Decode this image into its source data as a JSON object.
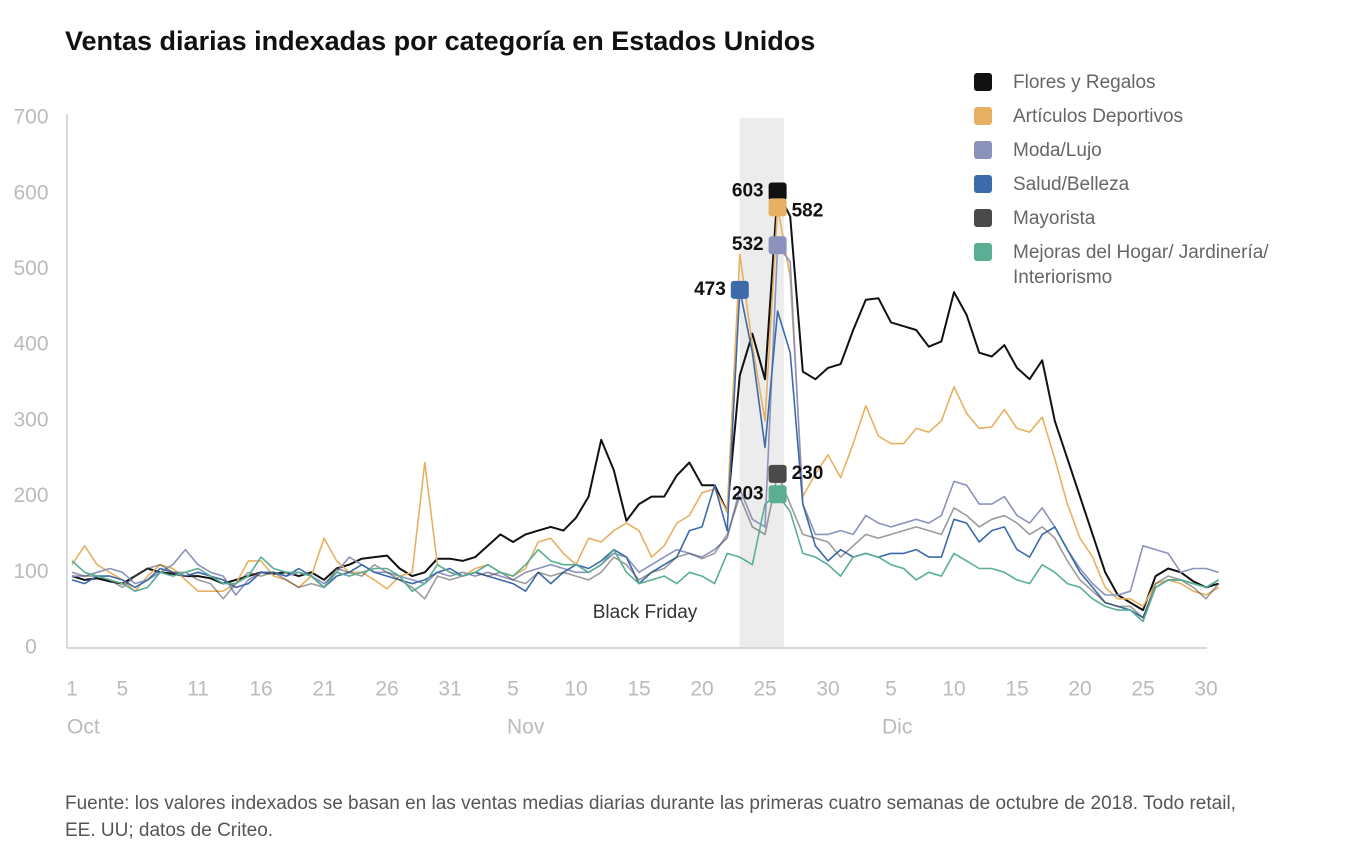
{
  "chart_data": {
    "type": "line",
    "title": "Ventas diarias indexadas por categoría en Estados Unidos",
    "footnote": "Fuente: los valores indexados se basan en las ventas medias diarias durante las primeras cuatro semanas de octubre de 2018. Todo retail, EE. UU; datos de Criteo.",
    "categories": [
      "1",
      null,
      null,
      null,
      "5",
      null,
      null,
      null,
      null,
      null,
      "11",
      null,
      null,
      null,
      null,
      "16",
      null,
      null,
      null,
      null,
      "21",
      null,
      null,
      null,
      null,
      "26",
      null,
      null,
      null,
      null,
      "31",
      null,
      null,
      null,
      null,
      "5",
      null,
      null,
      null,
      null,
      "10",
      null,
      null,
      null,
      null,
      "15",
      null,
      null,
      null,
      null,
      "20",
      null,
      null,
      null,
      null,
      "25",
      null,
      null,
      null,
      null,
      "30",
      null,
      null,
      null,
      null,
      "5",
      null,
      null,
      null,
      null,
      "10",
      null,
      null,
      null,
      null,
      "15",
      null,
      null,
      null,
      null,
      "20",
      null,
      null,
      null,
      null,
      "25",
      null,
      null,
      null,
      null,
      "30",
      null
    ],
    "months": [
      "Oct",
      "Nov",
      "Dic"
    ],
    "highlight": {
      "label": "Black Friday",
      "start": 53,
      "end": 56.5
    },
    "ylim": [
      0,
      700
    ],
    "yticks": [
      0,
      100,
      200,
      300,
      400,
      500,
      600,
      700
    ],
    "grid": false,
    "legend": "top-right",
    "series": [
      {
        "name": "Flores y Regalos",
        "color": "#111111",
        "values": [
          95,
          90,
          92,
          88,
          85,
          95,
          105,
          100,
          98,
          95,
          95,
          92,
          85,
          90,
          95,
          100,
          98,
          100,
          95,
          100,
          90,
          105,
          110,
          118,
          120,
          122,
          105,
          95,
          100,
          118,
          118,
          115,
          120,
          135,
          150,
          140,
          150,
          155,
          160,
          155,
          172,
          200,
          275,
          235,
          168,
          190,
          200,
          200,
          228,
          245,
          215,
          215,
          180,
          360,
          415,
          355,
          603,
          570,
          365,
          355,
          370,
          375,
          420,
          460,
          462,
          430,
          425,
          420,
          398,
          405,
          470,
          440,
          390,
          385,
          400,
          370,
          355,
          380,
          300,
          250,
          200,
          150,
          100,
          70,
          60,
          50,
          95,
          105,
          100,
          88,
          80,
          85
        ]
      },
      {
        "name": "Artículos Deportivos",
        "color": "#e8b062",
        "values": [
          110,
          135,
          110,
          100,
          90,
          75,
          95,
          110,
          105,
          90,
          75,
          75,
          75,
          85,
          115,
          115,
          95,
          90,
          80,
          95,
          145,
          115,
          100,
          100,
          90,
          78,
          95,
          100,
          245,
          110,
          100,
          95,
          105,
          110,
          100,
          95,
          105,
          140,
          145,
          125,
          110,
          145,
          140,
          155,
          165,
          155,
          120,
          135,
          165,
          175,
          205,
          210,
          180,
          520,
          400,
          300,
          582,
          490,
          200,
          230,
          255,
          225,
          270,
          320,
          280,
          270,
          270,
          290,
          285,
          300,
          345,
          310,
          290,
          292,
          315,
          290,
          285,
          305,
          250,
          190,
          145,
          120,
          80,
          65,
          65,
          55,
          85,
          90,
          85,
          75,
          70,
          80
        ]
      },
      {
        "name": "Moda/Lujo",
        "color": "#8b93bd",
        "values": [
          95,
          95,
          100,
          105,
          100,
          85,
          90,
          100,
          110,
          130,
          110,
          100,
          95,
          70,
          90,
          100,
          100,
          95,
          100,
          95,
          85,
          100,
          120,
          110,
          100,
          100,
          95,
          90,
          85,
          100,
          95,
          100,
          95,
          100,
          95,
          90,
          100,
          105,
          110,
          105,
          100,
          100,
          110,
          125,
          120,
          100,
          110,
          120,
          130,
          125,
          120,
          130,
          145,
          210,
          170,
          160,
          532,
          510,
          190,
          150,
          150,
          155,
          150,
          175,
          165,
          160,
          165,
          170,
          165,
          175,
          220,
          215,
          190,
          190,
          200,
          175,
          165,
          185,
          160,
          130,
          105,
          85,
          70,
          70,
          75,
          135,
          130,
          125,
          100,
          105,
          105,
          100
        ]
      },
      {
        "name": "Salud/Belleza",
        "color": "#3d6aab",
        "values": [
          90,
          85,
          95,
          95,
          90,
          80,
          90,
          105,
          100,
          95,
          100,
          95,
          90,
          80,
          85,
          100,
          100,
          95,
          105,
          95,
          80,
          95,
          100,
          110,
          100,
          95,
          90,
          85,
          90,
          100,
          105,
          95,
          100,
          95,
          90,
          85,
          75,
          100,
          85,
          100,
          110,
          105,
          115,
          130,
          120,
          85,
          100,
          110,
          120,
          155,
          160,
          215,
          155,
          473,
          390,
          265,
          445,
          390,
          190,
          135,
          115,
          130,
          120,
          125,
          120,
          125,
          125,
          130,
          120,
          120,
          170,
          165,
          140,
          155,
          160,
          130,
          120,
          150,
          160,
          130,
          100,
          80,
          60,
          55,
          50,
          40,
          80,
          90,
          90,
          85,
          80,
          90
        ]
      },
      {
        "name": "Mayorista",
        "color": "#4a4a4a",
        "values": [
          100,
          95,
          95,
          90,
          80,
          95,
          105,
          110,
          100,
          100,
          90,
          85,
          65,
          85,
          100,
          95,
          100,
          90,
          80,
          85,
          80,
          105,
          100,
          95,
          110,
          100,
          90,
          80,
          65,
          95,
          90,
          95,
          100,
          95,
          100,
          90,
          85,
          100,
          95,
          100,
          95,
          90,
          100,
          120,
          110,
          90,
          100,
          105,
          120,
          125,
          118,
          125,
          150,
          200,
          160,
          150,
          230,
          190,
          150,
          145,
          140,
          120,
          135,
          150,
          145,
          150,
          155,
          160,
          155,
          150,
          185,
          175,
          160,
          170,
          175,
          165,
          150,
          160,
          145,
          115,
          90,
          75,
          60,
          55,
          55,
          40,
          85,
          95,
          90,
          80,
          65,
          85
        ]
      },
      {
        "name": "Mejoras del Hogar/ Jardinería/ Interiorismo",
        "color": "#5aae93",
        "values": [
          115,
          100,
          95,
          90,
          85,
          75,
          80,
          100,
          95,
          100,
          105,
          95,
          85,
          85,
          95,
          120,
          105,
          100,
          100,
          95,
          80,
          100,
          95,
          100,
          105,
          105,
          95,
          75,
          85,
          110,
          100,
          95,
          100,
          110,
          100,
          95,
          110,
          130,
          115,
          110,
          110,
          100,
          110,
          130,
          100,
          85,
          90,
          95,
          85,
          100,
          95,
          85,
          125,
          120,
          110,
          190,
          203,
          180,
          125,
          120,
          110,
          95,
          120,
          125,
          120,
          110,
          105,
          90,
          100,
          95,
          125,
          115,
          105,
          105,
          100,
          90,
          85,
          110,
          100,
          85,
          80,
          65,
          55,
          50,
          50,
          35,
          80,
          90,
          90,
          85,
          80,
          90
        ]
      }
    ],
    "labeled_points": [
      {
        "series": 0,
        "index": 56
      },
      {
        "series": 1,
        "index": 56
      },
      {
        "series": 2,
        "index": 56
      },
      {
        "series": 3,
        "index": 53
      },
      {
        "series": 4,
        "index": 56
      },
      {
        "series": 5,
        "index": 56
      }
    ]
  }
}
